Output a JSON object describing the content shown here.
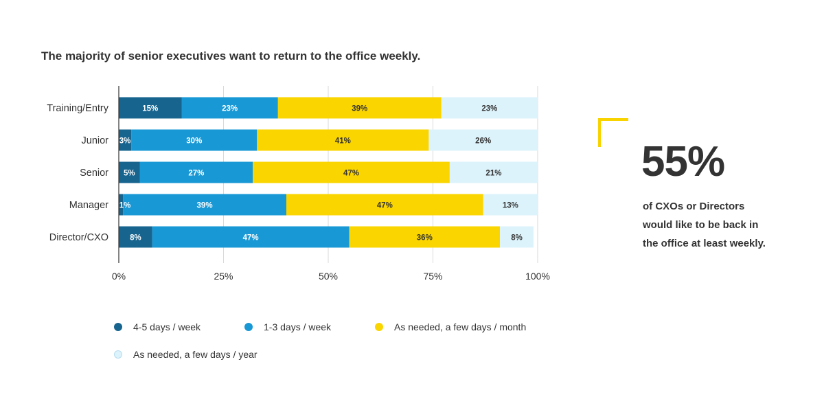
{
  "title": "The majority of senior executives want to return to the office weekly.",
  "chart_data": {
    "type": "bar",
    "orientation": "horizontal",
    "stacked": true,
    "categories": [
      "Training/Entry",
      "Junior",
      "Senior",
      "Manager",
      "Director/CXO"
    ],
    "series": [
      {
        "name": "4-5 days / week",
        "color": "#17648f",
        "values": [
          15,
          3,
          5,
          1,
          8
        ],
        "labels": [
          "15%",
          "3%",
          "5%",
          "1%",
          "8%"
        ]
      },
      {
        "name": "1-3 days / week",
        "color": "#1898d5",
        "values": [
          23,
          30,
          27,
          39,
          47
        ],
        "labels": [
          "23%",
          "30%",
          "27%",
          "39%",
          "47%"
        ]
      },
      {
        "name": "As needed, a few days / month",
        "color": "#fad500",
        "values": [
          39,
          41,
          47,
          47,
          36
        ],
        "labels": [
          "39%",
          "41%",
          "47%",
          "47%",
          "36%"
        ]
      },
      {
        "name": "As needed, a few days / year",
        "color": "#ddf3fb",
        "values": [
          23,
          26,
          21,
          13,
          8
        ],
        "labels": [
          "23%",
          "26%",
          "21%",
          "13%",
          "8%"
        ]
      }
    ],
    "xlim": [
      0,
      100
    ],
    "xticks": [
      "0%",
      "25%",
      "50%",
      "75%",
      "100%"
    ],
    "xtick_values": [
      0,
      25,
      50,
      75,
      100
    ],
    "grid": true,
    "legend_position": "bottom"
  },
  "callout": {
    "stat": "55%",
    "text": "of CXOs or Directors would like to be back in the office at least weekly.",
    "accent_color": "#f8d300"
  }
}
